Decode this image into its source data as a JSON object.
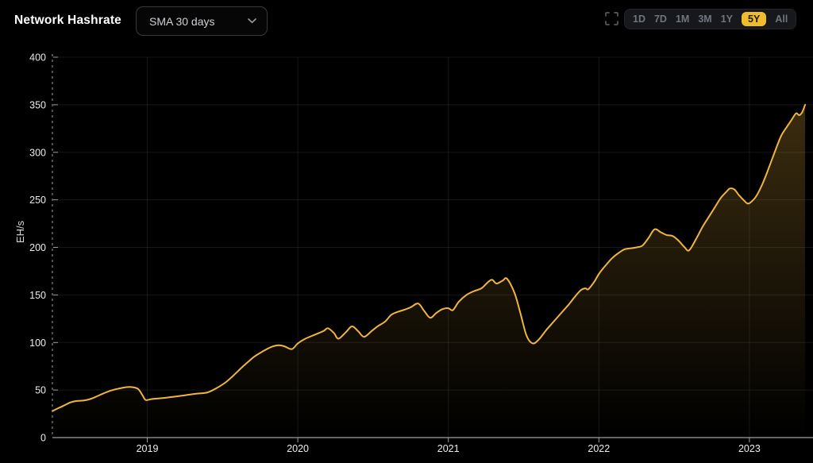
{
  "header": {
    "title": "Network Hashrate",
    "sma_dropdown": {
      "value": "SMA 30 days"
    },
    "range_buttons": [
      {
        "label": "1D",
        "active": false
      },
      {
        "label": "7D",
        "active": false
      },
      {
        "label": "1M",
        "active": false
      },
      {
        "label": "3M",
        "active": false
      },
      {
        "label": "1Y",
        "active": false
      },
      {
        "label": "5Y",
        "active": true
      },
      {
        "label": "All",
        "active": false
      }
    ]
  },
  "icons": {
    "fullscreen": "fullscreen-expand-icon",
    "dropdown_chevron": "chevron-down-icon"
  },
  "colors": {
    "background": "#000000",
    "line": "#f1b53f",
    "area_top_opacity": 0.28,
    "grid": "rgba(255,255,255,0.085)",
    "axis": "#9b9ea1",
    "dashed_axis": "#9b9ea1",
    "tick_label": "#eceded",
    "axis_unit_label": "#d7d9da",
    "active_button_bg": "#efbc2f",
    "active_button_text": "#1c1c1e",
    "inactive_button_text": "#70757d"
  },
  "chart_data": {
    "type": "area",
    "title": "Network Hashrate",
    "series_name": "Network Hashrate (SMA 30 days)",
    "xlabel": "",
    "ylabel": "EH/s",
    "ylim": [
      0,
      400
    ],
    "y_ticks": [
      0,
      50,
      100,
      150,
      200,
      250,
      300,
      350,
      400
    ],
    "x_ticks": [
      {
        "value": 2019,
        "label": "2019"
      },
      {
        "value": 2020,
        "label": "2020"
      },
      {
        "value": 2021,
        "label": "2021"
      },
      {
        "value": 2022,
        "label": "2022"
      },
      {
        "value": 2023,
        "label": "2023"
      }
    ],
    "grid": true,
    "legend": false,
    "x_unit": "decimal_year",
    "y_unit": "EH/s",
    "x": [
      2018.37,
      2018.41,
      2018.45,
      2018.49,
      2018.53,
      2018.58,
      2018.62,
      2018.66,
      2018.71,
      2018.76,
      2018.81,
      2018.86,
      2018.9,
      2018.94,
      2018.97,
      2018.99,
      2019.03,
      2019.1,
      2019.18,
      2019.25,
      2019.32,
      2019.4,
      2019.46,
      2019.52,
      2019.57,
      2019.63,
      2019.68,
      2019.71,
      2019.76,
      2019.82,
      2019.87,
      2019.91,
      2019.96,
      2020.0,
      2020.05,
      2020.11,
      2020.17,
      2020.2,
      2020.24,
      2020.27,
      2020.32,
      2020.36,
      2020.4,
      2020.44,
      2020.49,
      2020.53,
      2020.58,
      2020.62,
      2020.66,
      2020.7,
      2020.75,
      2020.8,
      2020.84,
      2020.88,
      2020.92,
      2020.96,
      2021.0,
      2021.03,
      2021.07,
      2021.12,
      2021.17,
      2021.22,
      2021.26,
      2021.29,
      2021.32,
      2021.36,
      2021.39,
      2021.44,
      2021.48,
      2021.52,
      2021.56,
      2021.6,
      2021.65,
      2021.7,
      2021.75,
      2021.8,
      2021.84,
      2021.88,
      2021.91,
      2021.93,
      2021.97,
      2022.0,
      2022.05,
      2022.09,
      2022.13,
      2022.17,
      2022.21,
      2022.25,
      2022.29,
      2022.33,
      2022.37,
      2022.41,
      2022.45,
      2022.49,
      2022.53,
      2022.57,
      2022.6,
      2022.65,
      2022.69,
      2022.73,
      2022.77,
      2022.81,
      2022.85,
      2022.87,
      2022.9,
      2022.93,
      2022.96,
      2022.99,
      2023.02,
      2023.05,
      2023.09,
      2023.13,
      2023.17,
      2023.21,
      2023.25,
      2023.28,
      2023.31,
      2023.33,
      2023.35,
      2023.37
    ],
    "y": [
      28,
      31,
      34,
      37,
      38.5,
      39,
      40.5,
      43,
      46.5,
      49.5,
      51.5,
      53,
      53,
      51,
      44,
      39.5,
      40.5,
      41.5,
      43,
      44.5,
      46,
      47.5,
      52,
      58,
      65,
      74,
      81,
      85,
      90,
      95,
      97,
      96,
      93,
      99,
      104,
      108,
      112,
      115,
      110,
      104,
      111,
      117,
      112,
      106,
      112,
      117,
      122,
      129,
      132,
      134,
      137,
      141,
      133,
      126,
      131,
      135,
      136,
      134,
      143,
      150,
      154,
      157,
      163,
      166,
      162,
      165,
      167,
      152,
      130,
      107,
      99,
      103,
      113,
      122,
      131,
      140,
      148,
      155,
      157,
      156,
      164,
      172,
      182,
      189,
      194,
      198,
      199,
      200,
      202,
      210,
      219,
      216,
      213,
      212,
      207,
      200,
      197,
      210,
      222,
      232,
      242,
      252,
      259,
      262,
      261,
      255,
      250,
      246,
      249,
      255,
      268,
      284,
      301,
      317,
      327,
      334,
      341,
      339,
      342,
      350
    ]
  }
}
